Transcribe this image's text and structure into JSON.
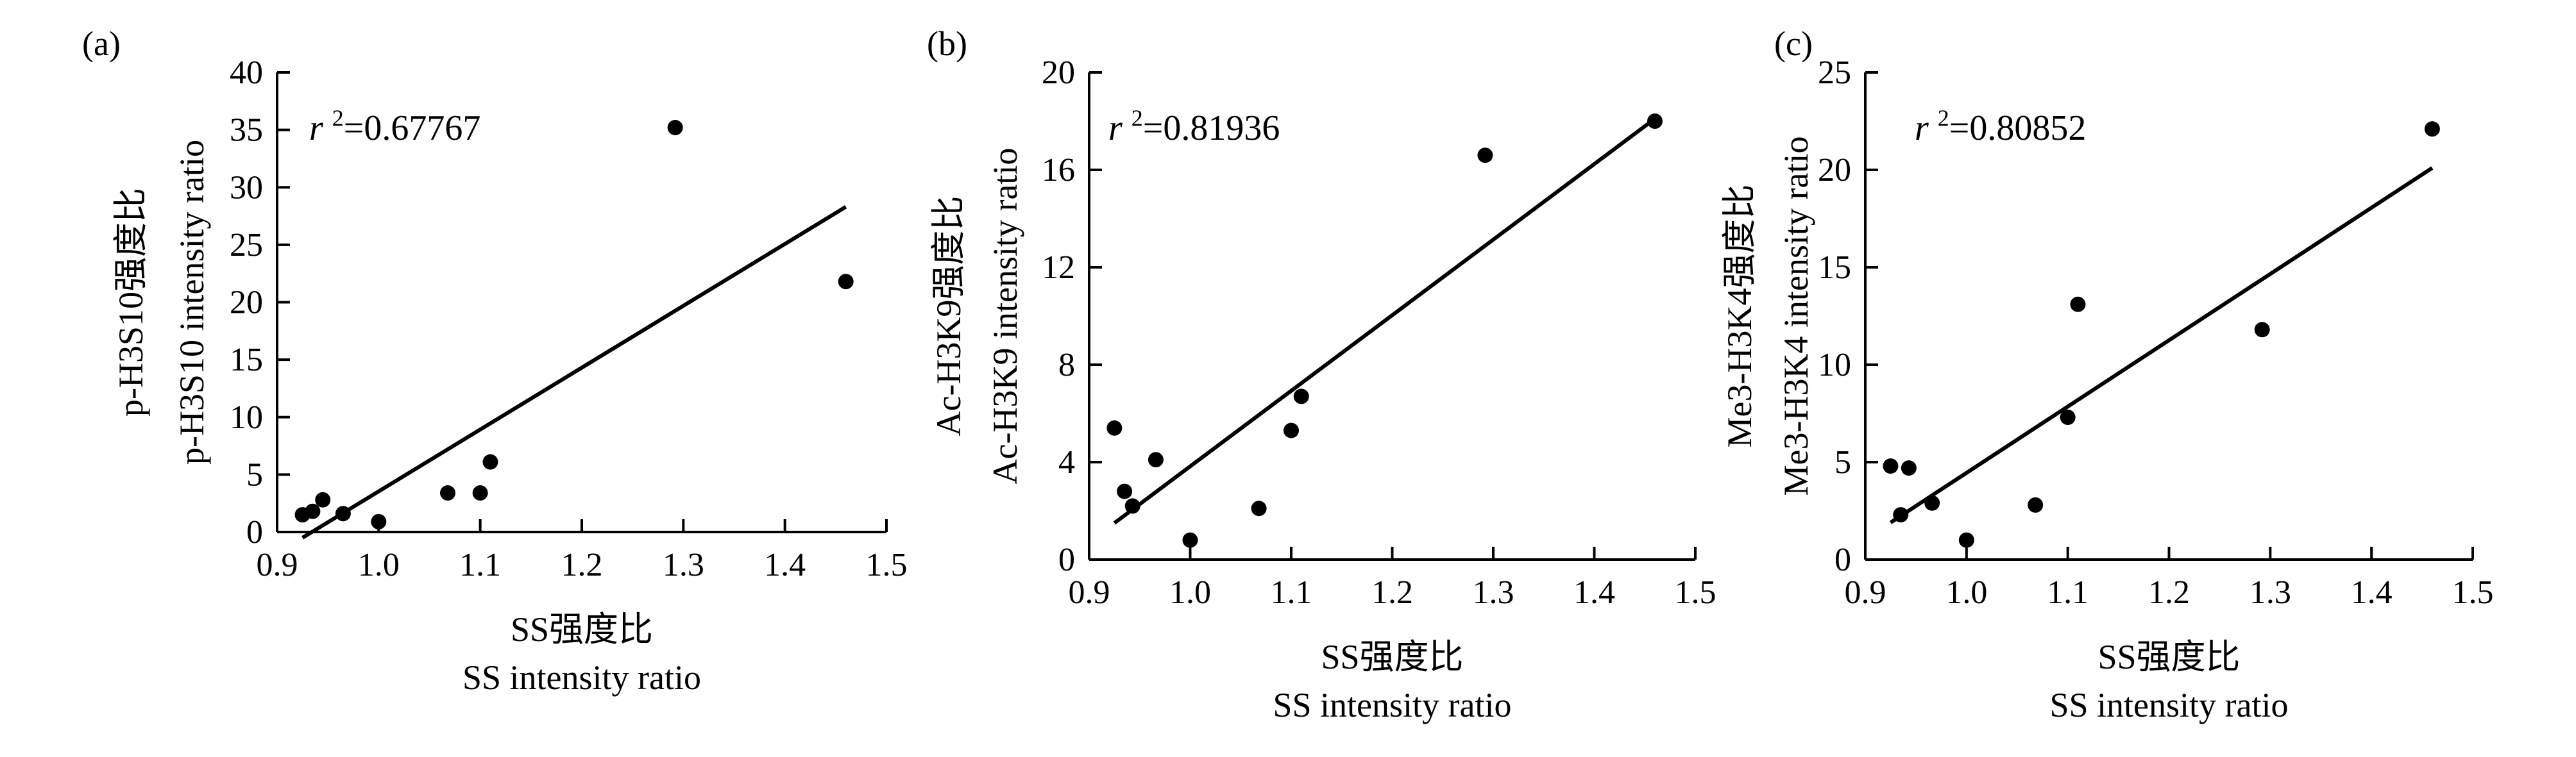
{
  "chart_data": [
    {
      "type": "scatter",
      "panel_label": "(a)",
      "ylabel_cn": "p-H3S10强度比",
      "ylabel_en": "p-H3S10 intensity ratio",
      "xlabel_cn": "SS强度比",
      "xlabel_en": "SS intensity ratio",
      "annotation": {
        "r": "r",
        "sup": "2",
        "value": "=0.67767"
      },
      "xlim": [
        0.9,
        1.5
      ],
      "ylim": [
        0,
        40
      ],
      "xticks": [
        "0.9",
        "1.0",
        "1.1",
        "1.2",
        "1.3",
        "1.4",
        "1.5"
      ],
      "yticks": [
        "0",
        "5",
        "10",
        "15",
        "20",
        "25",
        "30",
        "35",
        "40"
      ],
      "points": [
        {
          "x": 0.925,
          "y": 1.5
        },
        {
          "x": 0.935,
          "y": 1.8
        },
        {
          "x": 0.945,
          "y": 2.8
        },
        {
          "x": 0.965,
          "y": 1.6
        },
        {
          "x": 1.0,
          "y": 0.9
        },
        {
          "x": 1.068,
          "y": 3.4
        },
        {
          "x": 1.1,
          "y": 3.4
        },
        {
          "x": 1.11,
          "y": 6.1
        },
        {
          "x": 1.292,
          "y": 35.2
        },
        {
          "x": 1.46,
          "y": 21.8
        }
      ],
      "fit_line": [
        {
          "x": 0.925,
          "y": -0.5
        },
        {
          "x": 1.46,
          "y": 28.3
        }
      ]
    },
    {
      "type": "scatter",
      "panel_label": "(b)",
      "ylabel_cn": "Ac-H3K9强度比",
      "ylabel_en": "Ac-H3K9 intensity ratio",
      "xlabel_cn": "SS强度比",
      "xlabel_en": "SS intensity ratio",
      "annotation": {
        "r": "r",
        "sup": "2",
        "value": "=0.81936"
      },
      "xlim": [
        0.9,
        1.5
      ],
      "ylim": [
        0,
        20
      ],
      "xticks": [
        "0.9",
        "1.0",
        "1.1",
        "1.2",
        "1.3",
        "1.4",
        "1.5"
      ],
      "yticks": [
        "0",
        "4",
        "8",
        "12",
        "16",
        "20"
      ],
      "points": [
        {
          "x": 0.925,
          "y": 5.4
        },
        {
          "x": 0.935,
          "y": 2.8
        },
        {
          "x": 0.943,
          "y": 2.2
        },
        {
          "x": 0.966,
          "y": 4.1
        },
        {
          "x": 1.0,
          "y": 0.8
        },
        {
          "x": 1.068,
          "y": 2.1
        },
        {
          "x": 1.1,
          "y": 5.3
        },
        {
          "x": 1.11,
          "y": 6.7
        },
        {
          "x": 1.292,
          "y": 16.6
        },
        {
          "x": 1.46,
          "y": 18.0
        }
      ],
      "fit_line": [
        {
          "x": 0.925,
          "y": 1.5
        },
        {
          "x": 1.46,
          "y": 18.1
        }
      ]
    },
    {
      "type": "scatter",
      "panel_label": "(c)",
      "ylabel_cn": "Me3-H3K4强度比",
      "ylabel_en": "Me3-H3K4 intensity ratio",
      "xlabel_cn": "SS强度比",
      "xlabel_en": "SS intensity ratio",
      "annotation": {
        "r": "r",
        "sup": "2",
        "value": "=0.80852"
      },
      "xlim": [
        0.9,
        1.5
      ],
      "ylim": [
        0,
        25
      ],
      "xticks": [
        "0.9",
        "1.0",
        "1.1",
        "1.2",
        "1.3",
        "1.4",
        "1.5"
      ],
      "yticks": [
        "0",
        "5",
        "10",
        "15",
        "20",
        "25"
      ],
      "points": [
        {
          "x": 0.925,
          "y": 4.8
        },
        {
          "x": 0.935,
          "y": 2.3
        },
        {
          "x": 0.943,
          "y": 4.7
        },
        {
          "x": 0.966,
          "y": 2.9
        },
        {
          "x": 1.0,
          "y": 1.0
        },
        {
          "x": 1.068,
          "y": 2.8
        },
        {
          "x": 1.1,
          "y": 7.3
        },
        {
          "x": 1.11,
          "y": 13.1
        },
        {
          "x": 1.292,
          "y": 11.8
        },
        {
          "x": 1.46,
          "y": 22.1
        }
      ],
      "fit_line": [
        {
          "x": 0.925,
          "y": 1.9
        },
        {
          "x": 1.46,
          "y": 20.1
        }
      ]
    }
  ]
}
